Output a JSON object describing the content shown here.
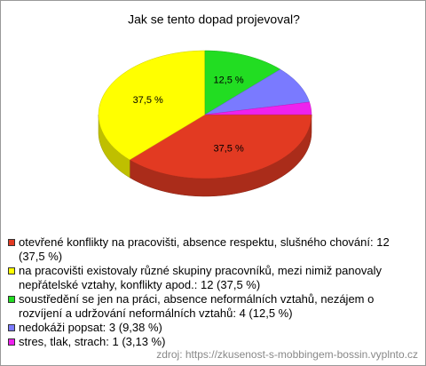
{
  "chart_data": {
    "type": "pie",
    "title": "Jak se tento dopad projevoval?",
    "categories": [
      "otevřené konflikty na pracovišti, absence respektu, slušného chování: 12 (37,5 %)",
      "na pracovišti existovaly různé skupiny pracovníků, mezi nimiž panovaly nepřátelské vztahy, konflikty apod.: 12 (37,5 %)",
      "soustředění se jen na práci, absence neformálních vztahů, nezájem o rozvíjení a udržování neformálních vztahů: 4 (12,5 %)",
      "nedokáži popsat: 3 (9,38 %)",
      "stres, tlak, strach: 1 (3,13 %)"
    ],
    "values": [
      37.5,
      37.5,
      12.5,
      9.38,
      3.13
    ],
    "value_labels": [
      "37,5 %",
      "37,5 %",
      "12,5 %",
      null,
      null
    ],
    "colors": [
      "#e23a22",
      "#ffff00",
      "#22dd22",
      "#7a7aff",
      "#ee22ee"
    ],
    "source": "zdroj: https://zkusenost-s-mobbingem-bossin.vyplnto.cz"
  }
}
